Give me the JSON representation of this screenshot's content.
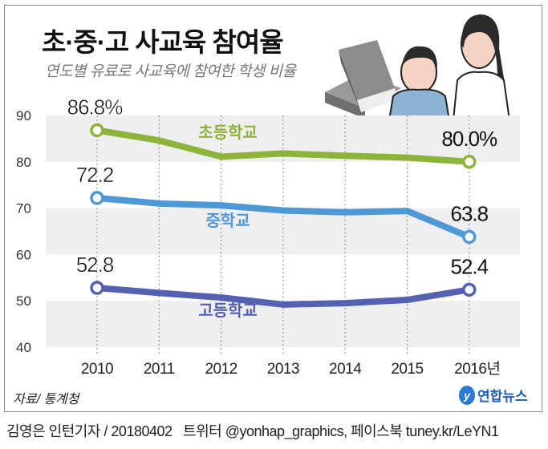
{
  "header": {
    "title": "초·중·고 사교육 참여율",
    "subtitle": "연도별 유료로 사교육에 참여한 학생 비율"
  },
  "footer": {
    "source": "자료/ 통계청",
    "logo_text": "연합뉴스",
    "credit": "김영은 인턴기자 / 20180402   트위터 @yonhap_graphics, 페이스북 tuney.kr/LeYN1"
  },
  "chart_data": {
    "type": "line",
    "x": [
      "2010",
      "2011",
      "2012",
      "2013",
      "2014",
      "2015",
      "2016년"
    ],
    "ylim": [
      40,
      90
    ],
    "yticks": [
      40,
      50,
      60,
      70,
      80,
      90
    ],
    "grid": "alternating horizontal bands, dotted vertical lines",
    "series": [
      {
        "name": "초등학교",
        "color": "#8db33a",
        "values": [
          86.8,
          84.6,
          81.1,
          81.8,
          81.3,
          80.9,
          80.0
        ],
        "first_label": "86.8%",
        "last_label": "80.0%"
      },
      {
        "name": "중학교",
        "color": "#4f98d6",
        "values": [
          72.2,
          71.0,
          70.6,
          69.5,
          69.1,
          69.4,
          63.8
        ],
        "first_label": "72.2",
        "last_label": "63.8"
      },
      {
        "name": "고등학교",
        "color": "#5461b0",
        "values": [
          52.8,
          51.7,
          50.7,
          49.2,
          49.5,
          50.2,
          52.4
        ],
        "first_label": "52.8",
        "last_label": "52.4"
      }
    ]
  }
}
